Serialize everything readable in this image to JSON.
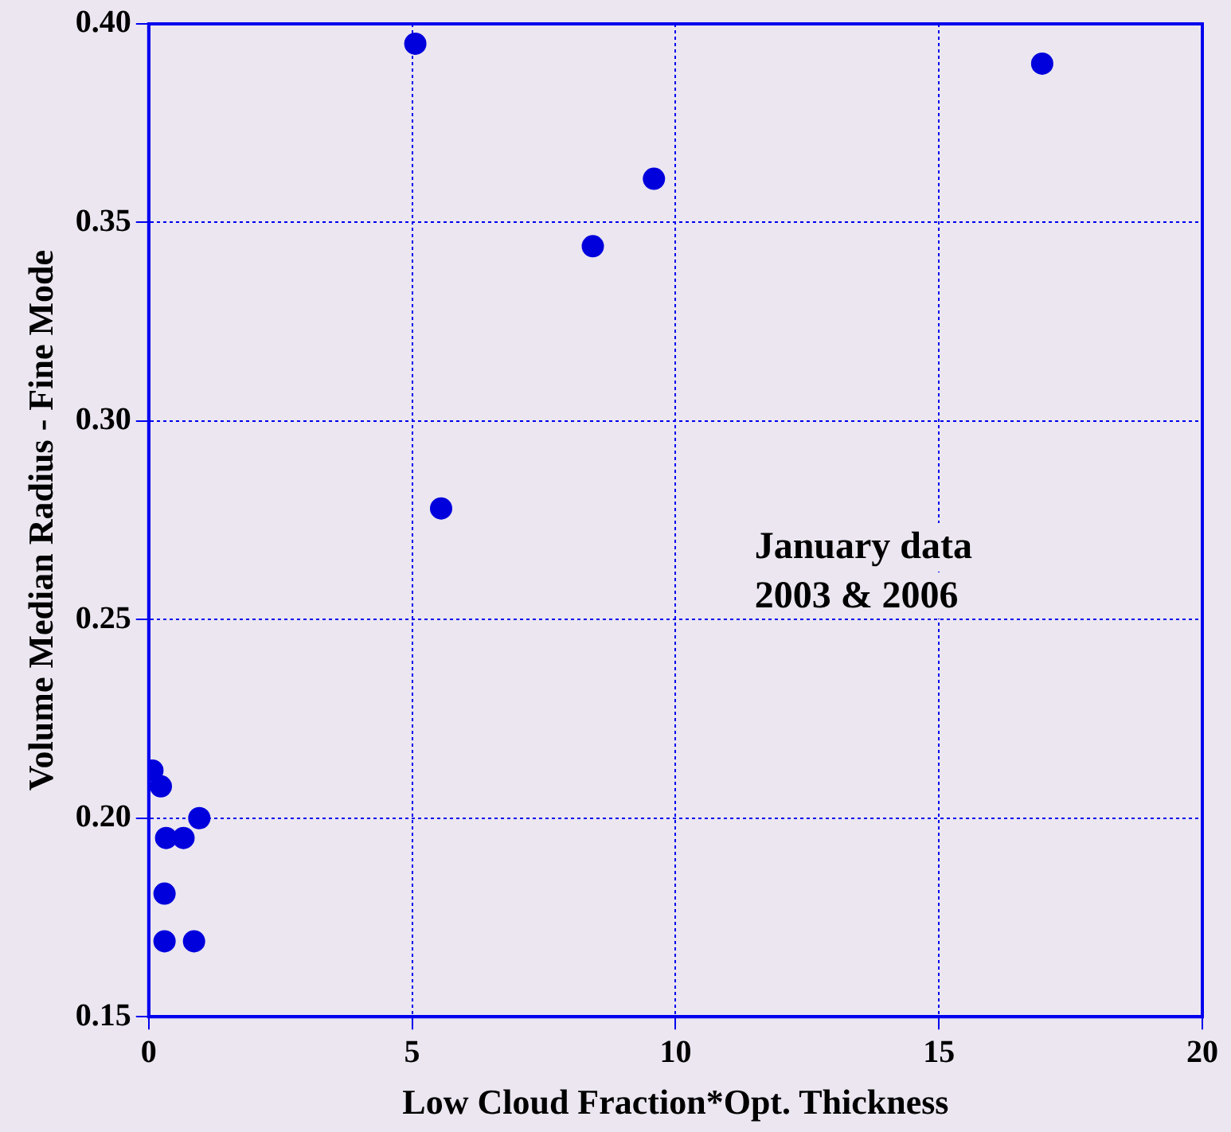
{
  "chart_data": {
    "type": "scatter",
    "xlabel": "Low Cloud Fraction*Opt. Thickness",
    "ylabel": "Volume Median Radius - Fine Mode",
    "annotations": [
      "January data",
      "2003 & 2006"
    ],
    "series": [
      {
        "color": "#0000dd",
        "x": [
          0.07,
          0.23,
          0.33,
          0.66,
          0.96,
          0.3,
          0.3,
          0.86,
          5.06,
          5.55,
          8.43,
          9.59,
          16.96
        ],
        "values": [
          0.212,
          0.208,
          0.195,
          0.195,
          0.2,
          0.181,
          0.169,
          0.169,
          0.395,
          0.278,
          0.344,
          0.361,
          0.39
        ]
      }
    ],
    "xlim": [
      0,
      20
    ],
    "xticks": [
      0,
      5,
      10,
      15,
      20
    ],
    "ylim": [
      0.15,
      0.4
    ],
    "yticks": [
      {
        "value": 0.15,
        "label": "0.15"
      },
      {
        "value": 0.2,
        "label": "0.20"
      },
      {
        "value": 0.25,
        "label": "0.25"
      },
      {
        "value": 0.3,
        "label": "0.30"
      },
      {
        "value": 0.35,
        "label": "0.35"
      },
      {
        "value": 0.4,
        "label": "0.40"
      }
    ],
    "grid": true,
    "marker": "circle",
    "legend": false
  }
}
